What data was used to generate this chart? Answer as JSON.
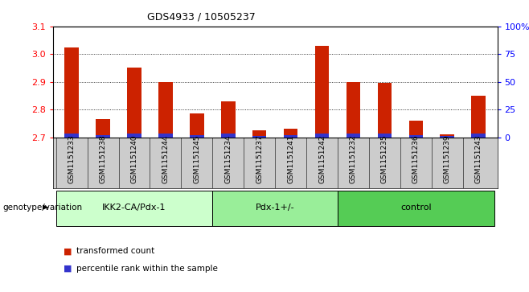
{
  "title": "GDS4933 / 10505237",
  "samples": [
    "GSM1151233",
    "GSM1151238",
    "GSM1151240",
    "GSM1151244",
    "GSM1151245",
    "GSM1151234",
    "GSM1151237",
    "GSM1151241",
    "GSM1151242",
    "GSM1151232",
    "GSM1151235",
    "GSM1151236",
    "GSM1151239",
    "GSM1151243"
  ],
  "transformed_count": [
    3.025,
    2.765,
    2.95,
    2.9,
    2.785,
    2.83,
    2.725,
    2.73,
    3.03,
    2.9,
    2.895,
    2.76,
    2.71,
    2.85
  ],
  "percentile_rank": [
    3,
    2,
    3,
    3,
    2,
    3,
    1,
    2,
    3,
    3,
    3,
    2,
    1,
    3
  ],
  "groups": [
    {
      "label": "IKK2-CA/Pdx-1",
      "start": 0,
      "end": 5,
      "color": "#ccffcc"
    },
    {
      "label": "Pdx-1+/-",
      "start": 5,
      "end": 9,
      "color": "#99ee99"
    },
    {
      "label": "control",
      "start": 9,
      "end": 14,
      "color": "#55cc55"
    }
  ],
  "ylim_left": [
    2.7,
    3.1
  ],
  "ylim_right": [
    0,
    100
  ],
  "yticks_left": [
    2.7,
    2.8,
    2.9,
    3.0,
    3.1
  ],
  "yticks_right": [
    0,
    25,
    50,
    75,
    100
  ],
  "ytick_labels_right": [
    "0",
    "25",
    "50",
    "75",
    "100%"
  ],
  "bar_color_red": "#cc2200",
  "bar_color_blue": "#3333cc",
  "bar_width": 0.45,
  "baseline": 2.7,
  "tick_area_color": "#cccccc",
  "group_label_prefix": "genotype/variation",
  "legend_items": [
    {
      "label": "transformed count",
      "color": "#cc2200"
    },
    {
      "label": "percentile rank within the sample",
      "color": "#3333cc"
    }
  ]
}
